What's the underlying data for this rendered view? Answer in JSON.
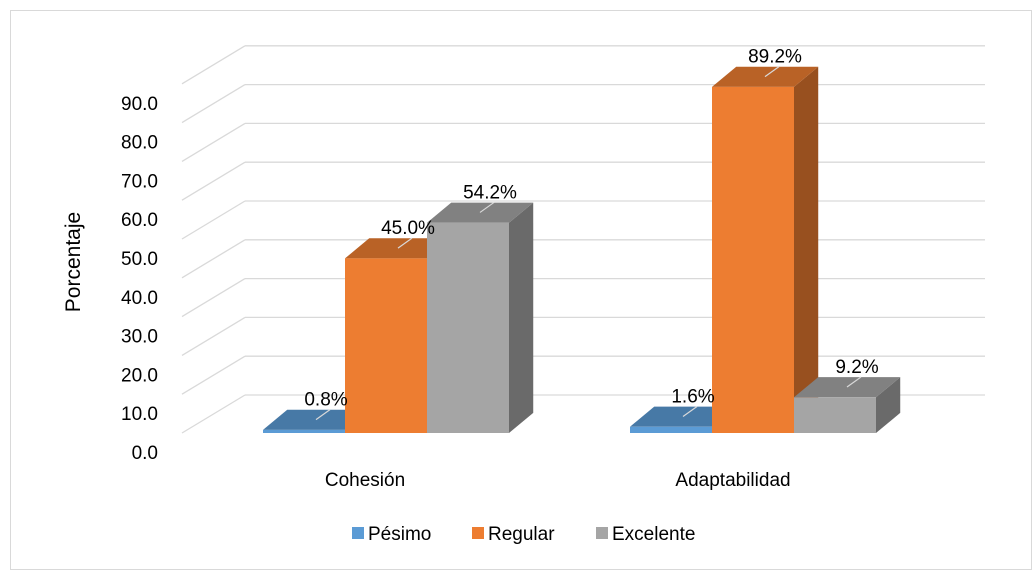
{
  "chart_data": {
    "type": "bar",
    "style": "3d-clustered-column",
    "categories": [
      "Cohesión",
      "Adaptabilidad"
    ],
    "series": [
      {
        "name": "Pésimo",
        "values": [
          0.8,
          1.6
        ],
        "color": "#5B9BD5",
        "labels": [
          "0.8%",
          "1.6%"
        ]
      },
      {
        "name": "Regular",
        "values": [
          45.0,
          89.2
        ],
        "color": "#ED7D31",
        "labels": [
          "45.0%",
          "89.2%"
        ]
      },
      {
        "name": "Excelente",
        "values": [
          54.2,
          9.2
        ],
        "color": "#A5A5A5",
        "labels": [
          "54.2%",
          "9.2%"
        ]
      }
    ],
    "ylabel": "Porcentaje",
    "xlabel": "",
    "ylim": [
      0,
      90
    ],
    "yticks": [
      "0.0",
      "10.0",
      "20.0",
      "30.0",
      "40.0",
      "50.0",
      "60.0",
      "70.0",
      "80.0",
      "90.0"
    ],
    "grid": true,
    "legend_position": "bottom"
  }
}
